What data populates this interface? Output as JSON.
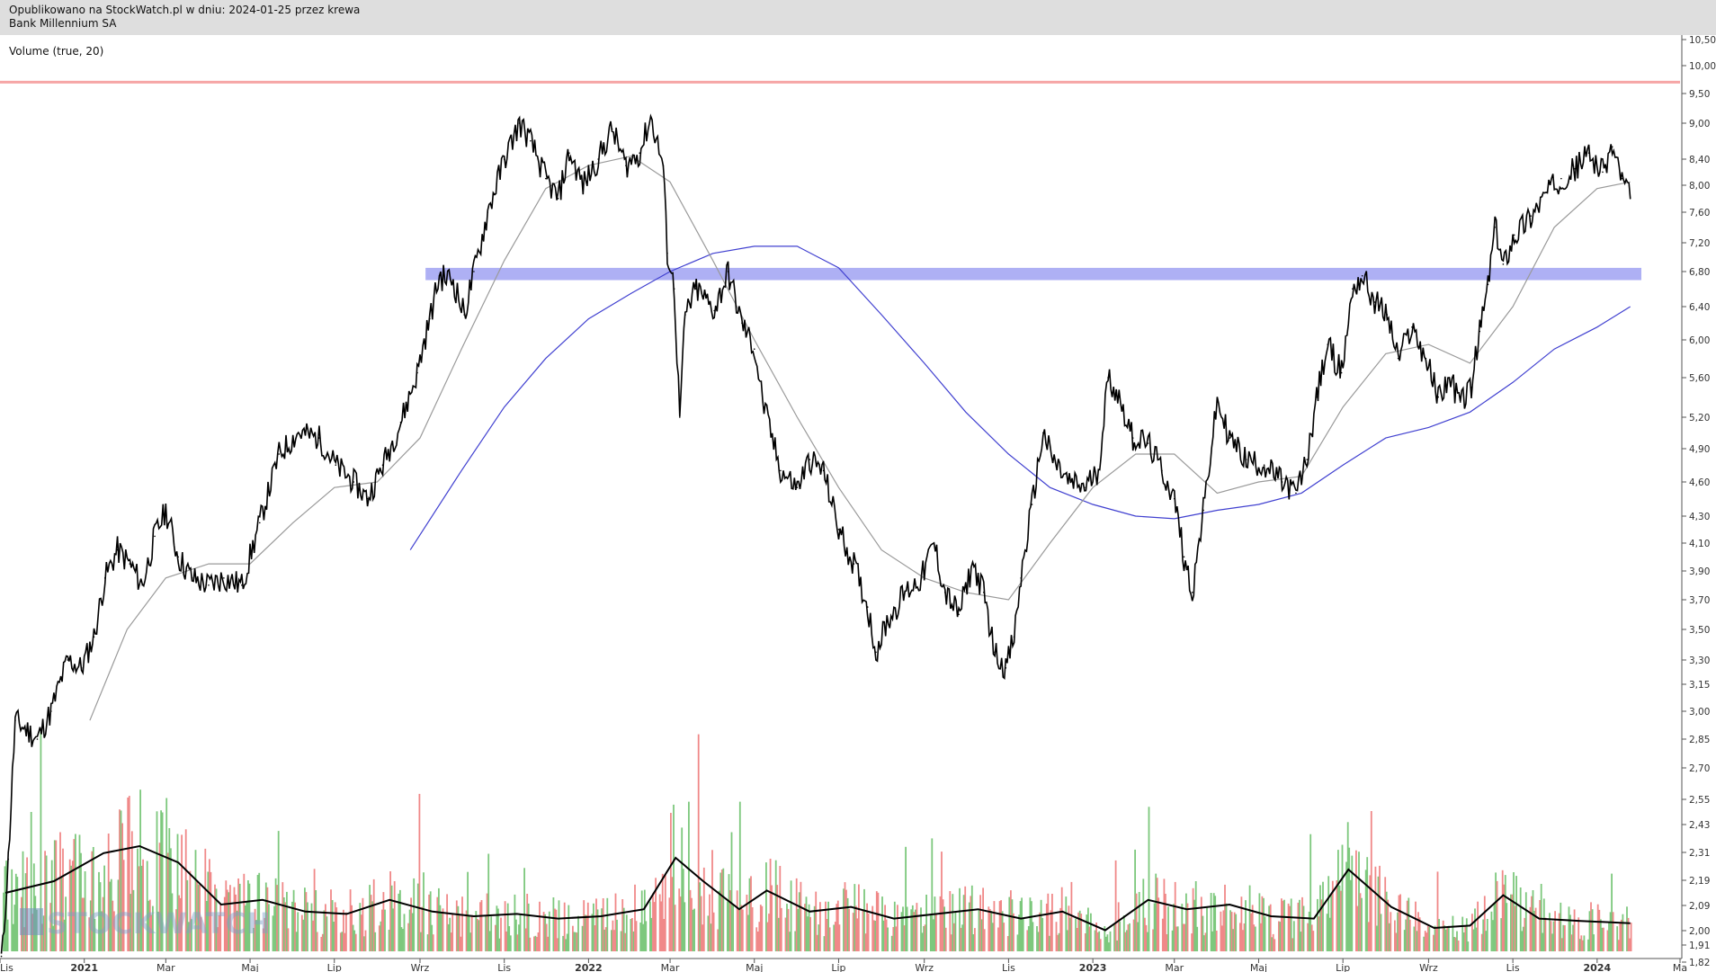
{
  "header": {
    "published": "Opublikowano na StockWatch.pl w dniu: 2024-01-25 przez krewa",
    "instrument": "Bank Millennium SA"
  },
  "volume_label": "Volume (true, 20)",
  "watermark": "STOCKWATCH",
  "colors": {
    "price": "#000000",
    "ma_short": "#9a9a9a",
    "ma_long": "#4040d0",
    "resistance_line": "#f6a6a6",
    "support_zone": "#aeb0f4",
    "volume_up": "#7dc87d",
    "volume_down": "#f08888",
    "volume_avg": "#000000"
  },
  "chart_data": {
    "type": "line",
    "y_scale": "log",
    "y_ticks": [
      "1,82",
      "1,91",
      "2,00",
      "2,09",
      "2,19",
      "2,31",
      "2,43",
      "2,55",
      "2,70",
      "2,85",
      "3,00",
      "3,15",
      "3,30",
      "3,50",
      "3,70",
      "3,90",
      "4,10",
      "4,30",
      "4,60",
      "4,90",
      "5,20",
      "5,60",
      "6,00",
      "6,40",
      "6,80",
      "7,20",
      "7,60",
      "8,00",
      "8,40",
      "9,00",
      "9,50",
      "10,00",
      "10,50"
    ],
    "x_labels": [
      "Lis",
      "2021",
      "Mar",
      "Maj",
      "Lip",
      "Wrz",
      "Lis",
      "2022",
      "Mar",
      "Maj",
      "Lip",
      "Wrz",
      "Lis",
      "2023",
      "Mar",
      "Maj",
      "Lip",
      "Wrz",
      "Lis",
      "2024",
      "Ma"
    ],
    "x_range": [
      "2020-11-01",
      "2024-03-01"
    ],
    "price_series": [
      {
        "date": "2020-11-02",
        "value": 1.85
      },
      {
        "date": "2020-11-07",
        "value": 2.28
      },
      {
        "date": "2020-11-12",
        "value": 2.95
      },
      {
        "date": "2020-11-20",
        "value": 2.9
      },
      {
        "date": "2020-11-28",
        "value": 2.85
      },
      {
        "date": "2020-12-08",
        "value": 3.0
      },
      {
        "date": "2020-12-20",
        "value": 3.3
      },
      {
        "date": "2020-12-30",
        "value": 3.25
      },
      {
        "date": "2021-01-08",
        "value": 3.45
      },
      {
        "date": "2021-01-16",
        "value": 3.85
      },
      {
        "date": "2021-01-25",
        "value": 4.05
      },
      {
        "date": "2021-02-03",
        "value": 3.95
      },
      {
        "date": "2021-02-12",
        "value": 3.8
      },
      {
        "date": "2021-02-21",
        "value": 4.15
      },
      {
        "date": "2021-03-01",
        "value": 4.35
      },
      {
        "date": "2021-03-10",
        "value": 4.0
      },
      {
        "date": "2021-03-20",
        "value": 3.85
      },
      {
        "date": "2021-04-01",
        "value": 3.8
      },
      {
        "date": "2021-04-12",
        "value": 3.85
      },
      {
        "date": "2021-04-25",
        "value": 3.8
      },
      {
        "date": "2021-05-08",
        "value": 4.25
      },
      {
        "date": "2021-05-22",
        "value": 4.85
      },
      {
        "date": "2021-06-05",
        "value": 5.05
      },
      {
        "date": "2021-06-20",
        "value": 5.0
      },
      {
        "date": "2021-07-02",
        "value": 4.75
      },
      {
        "date": "2021-07-15",
        "value": 4.6
      },
      {
        "date": "2021-07-25",
        "value": 4.45
      },
      {
        "date": "2021-08-05",
        "value": 4.75
      },
      {
        "date": "2021-08-18",
        "value": 5.15
      },
      {
        "date": "2021-08-30",
        "value": 5.65
      },
      {
        "date": "2021-09-08",
        "value": 6.25
      },
      {
        "date": "2021-09-15",
        "value": 6.75
      },
      {
        "date": "2021-09-25",
        "value": 6.7
      },
      {
        "date": "2021-10-03",
        "value": 6.3
      },
      {
        "date": "2021-10-10",
        "value": 6.8
      },
      {
        "date": "2021-10-20",
        "value": 7.6
      },
      {
        "date": "2021-11-01",
        "value": 8.4
      },
      {
        "date": "2021-11-12",
        "value": 9.0
      },
      {
        "date": "2021-11-20",
        "value": 8.7
      },
      {
        "date": "2021-12-01",
        "value": 8.1
      },
      {
        "date": "2021-12-10",
        "value": 7.8
      },
      {
        "date": "2021-12-18",
        "value": 8.5
      },
      {
        "date": "2021-12-28",
        "value": 8.0
      },
      {
        "date": "2022-01-08",
        "value": 8.4
      },
      {
        "date": "2022-01-18",
        "value": 8.9
      },
      {
        "date": "2022-01-28",
        "value": 8.3
      },
      {
        "date": "2022-02-07",
        "value": 8.5
      },
      {
        "date": "2022-02-15",
        "value": 9.1
      },
      {
        "date": "2022-02-24",
        "value": 8.3
      },
      {
        "date": "2022-02-27",
        "value": 7.05
      },
      {
        "date": "2022-03-04",
        "value": 6.6
      },
      {
        "date": "2022-03-08",
        "value": 5.2
      },
      {
        "date": "2022-03-12",
        "value": 6.3
      },
      {
        "date": "2022-03-20",
        "value": 6.6
      },
      {
        "date": "2022-04-02",
        "value": 6.35
      },
      {
        "date": "2022-04-12",
        "value": 6.8
      },
      {
        "date": "2022-04-22",
        "value": 6.2
      },
      {
        "date": "2022-05-01",
        "value": 5.9
      },
      {
        "date": "2022-05-08",
        "value": 5.3
      },
      {
        "date": "2022-05-20",
        "value": 4.7
      },
      {
        "date": "2022-06-01",
        "value": 4.55
      },
      {
        "date": "2022-06-10",
        "value": 4.8
      },
      {
        "date": "2022-06-20",
        "value": 4.7
      },
      {
        "date": "2022-07-01",
        "value": 4.2
      },
      {
        "date": "2022-07-12",
        "value": 3.95
      },
      {
        "date": "2022-07-22",
        "value": 3.65
      },
      {
        "date": "2022-07-28",
        "value": 3.35
      },
      {
        "date": "2022-08-05",
        "value": 3.55
      },
      {
        "date": "2022-08-18",
        "value": 3.75
      },
      {
        "date": "2022-08-30",
        "value": 3.85
      },
      {
        "date": "2022-09-08",
        "value": 4.1
      },
      {
        "date": "2022-09-16",
        "value": 3.75
      },
      {
        "date": "2022-09-26",
        "value": 3.6
      },
      {
        "date": "2022-10-06",
        "value": 3.95
      },
      {
        "date": "2022-10-14",
        "value": 3.75
      },
      {
        "date": "2022-10-22",
        "value": 3.35
      },
      {
        "date": "2022-10-30",
        "value": 3.25
      },
      {
        "date": "2022-11-05",
        "value": 3.45
      },
      {
        "date": "2022-11-10",
        "value": 3.85
      },
      {
        "date": "2022-11-18",
        "value": 4.4
      },
      {
        "date": "2022-11-26",
        "value": 5.05
      },
      {
        "date": "2022-12-03",
        "value": 4.8
      },
      {
        "date": "2022-12-14",
        "value": 4.6
      },
      {
        "date": "2022-12-26",
        "value": 4.55
      },
      {
        "date": "2023-01-05",
        "value": 4.7
      },
      {
        "date": "2023-01-12",
        "value": 5.6
      },
      {
        "date": "2023-01-20",
        "value": 5.4
      },
      {
        "date": "2023-01-30",
        "value": 5.0
      },
      {
        "date": "2023-02-10",
        "value": 4.95
      },
      {
        "date": "2023-02-20",
        "value": 4.7
      },
      {
        "date": "2023-03-01",
        "value": 4.45
      },
      {
        "date": "2023-03-08",
        "value": 4.0
      },
      {
        "date": "2023-03-14",
        "value": 3.75
      },
      {
        "date": "2023-03-22",
        "value": 4.35
      },
      {
        "date": "2023-04-01",
        "value": 5.35
      },
      {
        "date": "2023-04-10",
        "value": 5.0
      },
      {
        "date": "2023-04-22",
        "value": 4.8
      },
      {
        "date": "2023-05-05",
        "value": 4.75
      },
      {
        "date": "2023-05-18",
        "value": 4.6
      },
      {
        "date": "2023-05-28",
        "value": 4.5
      },
      {
        "date": "2023-06-05",
        "value": 4.8
      },
      {
        "date": "2023-06-12",
        "value": 5.4
      },
      {
        "date": "2023-06-20",
        "value": 5.95
      },
      {
        "date": "2023-06-30",
        "value": 5.65
      },
      {
        "date": "2023-07-08",
        "value": 6.6
      },
      {
        "date": "2023-07-15",
        "value": 6.75
      },
      {
        "date": "2023-07-24",
        "value": 6.45
      },
      {
        "date": "2023-08-02",
        "value": 6.3
      },
      {
        "date": "2023-08-10",
        "value": 5.8
      },
      {
        "date": "2023-08-20",
        "value": 6.15
      },
      {
        "date": "2023-08-30",
        "value": 5.8
      },
      {
        "date": "2023-09-08",
        "value": 5.4
      },
      {
        "date": "2023-09-16",
        "value": 5.6
      },
      {
        "date": "2023-09-24",
        "value": 5.35
      },
      {
        "date": "2023-10-02",
        "value": 5.5
      },
      {
        "date": "2023-10-08",
        "value": 6.1
      },
      {
        "date": "2023-10-14",
        "value": 6.65
      },
      {
        "date": "2023-10-19",
        "value": 7.4
      },
      {
        "date": "2023-10-25",
        "value": 6.9
      },
      {
        "date": "2023-11-02",
        "value": 7.3
      },
      {
        "date": "2023-11-14",
        "value": 7.55
      },
      {
        "date": "2023-11-26",
        "value": 7.9
      },
      {
        "date": "2023-12-06",
        "value": 8.1
      },
      {
        "date": "2023-12-16",
        "value": 8.25
      },
      {
        "date": "2023-12-26",
        "value": 8.5
      },
      {
        "date": "2024-01-05",
        "value": 8.2
      },
      {
        "date": "2024-01-12",
        "value": 8.6
      },
      {
        "date": "2024-01-19",
        "value": 8.1
      },
      {
        "date": "2024-01-25",
        "value": 7.8
      }
    ],
    "ma_short_series": [
      {
        "date": "2021-01-05",
        "value": 2.95
      },
      {
        "date": "2021-02-01",
        "value": 3.5
      },
      {
        "date": "2021-03-01",
        "value": 3.85
      },
      {
        "date": "2021-04-01",
        "value": 3.95
      },
      {
        "date": "2021-05-01",
        "value": 3.95
      },
      {
        "date": "2021-06-01",
        "value": 4.25
      },
      {
        "date": "2021-07-01",
        "value": 4.55
      },
      {
        "date": "2021-08-01",
        "value": 4.6
      },
      {
        "date": "2021-09-01",
        "value": 5.0
      },
      {
        "date": "2021-10-01",
        "value": 5.9
      },
      {
        "date": "2021-11-01",
        "value": 6.95
      },
      {
        "date": "2021-12-01",
        "value": 7.95
      },
      {
        "date": "2022-01-01",
        "value": 8.3
      },
      {
        "date": "2022-02-01",
        "value": 8.45
      },
      {
        "date": "2022-03-01",
        "value": 8.05
      },
      {
        "date": "2022-04-01",
        "value": 6.95
      },
      {
        "date": "2022-05-01",
        "value": 6.0
      },
      {
        "date": "2022-06-01",
        "value": 5.2
      },
      {
        "date": "2022-07-01",
        "value": 4.55
      },
      {
        "date": "2022-08-01",
        "value": 4.05
      },
      {
        "date": "2022-09-01",
        "value": 3.85
      },
      {
        "date": "2022-10-01",
        "value": 3.75
      },
      {
        "date": "2022-11-01",
        "value": 3.7
      },
      {
        "date": "2022-12-01",
        "value": 4.1
      },
      {
        "date": "2023-01-01",
        "value": 4.55
      },
      {
        "date": "2023-02-01",
        "value": 4.85
      },
      {
        "date": "2023-03-01",
        "value": 4.85
      },
      {
        "date": "2023-04-01",
        "value": 4.5
      },
      {
        "date": "2023-05-01",
        "value": 4.6
      },
      {
        "date": "2023-06-01",
        "value": 4.65
      },
      {
        "date": "2023-07-01",
        "value": 5.3
      },
      {
        "date": "2023-08-01",
        "value": 5.85
      },
      {
        "date": "2023-09-01",
        "value": 5.95
      },
      {
        "date": "2023-10-01",
        "value": 5.75
      },
      {
        "date": "2023-11-01",
        "value": 6.4
      },
      {
        "date": "2023-12-01",
        "value": 7.4
      },
      {
        "date": "2024-01-01",
        "value": 7.95
      },
      {
        "date": "2024-01-25",
        "value": 8.05
      }
    ],
    "ma_long_series": [
      {
        "date": "2021-08-25",
        "value": 4.05
      },
      {
        "date": "2021-10-01",
        "value": 4.7
      },
      {
        "date": "2021-11-01",
        "value": 5.3
      },
      {
        "date": "2021-12-01",
        "value": 5.8
      },
      {
        "date": "2022-01-01",
        "value": 6.25
      },
      {
        "date": "2022-02-01",
        "value": 6.55
      },
      {
        "date": "2022-03-01",
        "value": 6.8
      },
      {
        "date": "2022-04-01",
        "value": 7.05
      },
      {
        "date": "2022-05-01",
        "value": 7.15
      },
      {
        "date": "2022-06-01",
        "value": 7.15
      },
      {
        "date": "2022-07-01",
        "value": 6.85
      },
      {
        "date": "2022-08-01",
        "value": 6.3
      },
      {
        "date": "2022-09-01",
        "value": 5.75
      },
      {
        "date": "2022-10-01",
        "value": 5.25
      },
      {
        "date": "2022-11-01",
        "value": 4.85
      },
      {
        "date": "2022-12-01",
        "value": 4.55
      },
      {
        "date": "2023-01-01",
        "value": 4.4
      },
      {
        "date": "2023-02-01",
        "value": 4.3
      },
      {
        "date": "2023-03-01",
        "value": 4.28
      },
      {
        "date": "2023-04-01",
        "value": 4.35
      },
      {
        "date": "2023-05-01",
        "value": 4.4
      },
      {
        "date": "2023-06-01",
        "value": 4.5
      },
      {
        "date": "2023-07-01",
        "value": 4.75
      },
      {
        "date": "2023-08-01",
        "value": 5.0
      },
      {
        "date": "2023-09-01",
        "value": 5.1
      },
      {
        "date": "2023-10-01",
        "value": 5.25
      },
      {
        "date": "2023-11-01",
        "value": 5.55
      },
      {
        "date": "2023-12-01",
        "value": 5.9
      },
      {
        "date": "2024-01-01",
        "value": 6.15
      },
      {
        "date": "2024-01-25",
        "value": 6.4
      }
    ],
    "resistance_line": 9.7,
    "support_zone": [
      6.7,
      6.85
    ],
    "volume_avg_series": [
      {
        "date": "2020-11-05",
        "value": 0.25
      },
      {
        "date": "2020-12-10",
        "value": 0.3
      },
      {
        "date": "2021-01-15",
        "value": 0.42
      },
      {
        "date": "2021-02-10",
        "value": 0.45
      },
      {
        "date": "2021-03-10",
        "value": 0.38
      },
      {
        "date": "2021-04-10",
        "value": 0.2
      },
      {
        "date": "2021-05-10",
        "value": 0.22
      },
      {
        "date": "2021-06-10",
        "value": 0.17
      },
      {
        "date": "2021-07-10",
        "value": 0.16
      },
      {
        "date": "2021-08-10",
        "value": 0.22
      },
      {
        "date": "2021-09-10",
        "value": 0.17
      },
      {
        "date": "2021-10-10",
        "value": 0.15
      },
      {
        "date": "2021-11-10",
        "value": 0.16
      },
      {
        "date": "2021-12-10",
        "value": 0.14
      },
      {
        "date": "2022-01-10",
        "value": 0.15
      },
      {
        "date": "2022-02-10",
        "value": 0.18
      },
      {
        "date": "2022-03-05",
        "value": 0.4
      },
      {
        "date": "2022-03-25",
        "value": 0.3
      },
      {
        "date": "2022-04-20",
        "value": 0.18
      },
      {
        "date": "2022-05-10",
        "value": 0.26
      },
      {
        "date": "2022-06-10",
        "value": 0.17
      },
      {
        "date": "2022-07-10",
        "value": 0.19
      },
      {
        "date": "2022-08-10",
        "value": 0.14
      },
      {
        "date": "2022-09-10",
        "value": 0.16
      },
      {
        "date": "2022-10-10",
        "value": 0.18
      },
      {
        "date": "2022-11-10",
        "value": 0.14
      },
      {
        "date": "2022-12-10",
        "value": 0.17
      },
      {
        "date": "2023-01-10",
        "value": 0.09
      },
      {
        "date": "2023-02-10",
        "value": 0.22
      },
      {
        "date": "2023-03-10",
        "value": 0.18
      },
      {
        "date": "2023-04-10",
        "value": 0.2
      },
      {
        "date": "2023-05-10",
        "value": 0.15
      },
      {
        "date": "2023-06-10",
        "value": 0.14
      },
      {
        "date": "2023-07-05",
        "value": 0.35
      },
      {
        "date": "2023-08-05",
        "value": 0.19
      },
      {
        "date": "2023-09-05",
        "value": 0.1
      },
      {
        "date": "2023-10-01",
        "value": 0.11
      },
      {
        "date": "2023-10-25",
        "value": 0.24
      },
      {
        "date": "2023-11-20",
        "value": 0.14
      },
      {
        "date": "2023-12-20",
        "value": 0.13
      },
      {
        "date": "2024-01-25",
        "value": 0.12
      }
    ]
  }
}
